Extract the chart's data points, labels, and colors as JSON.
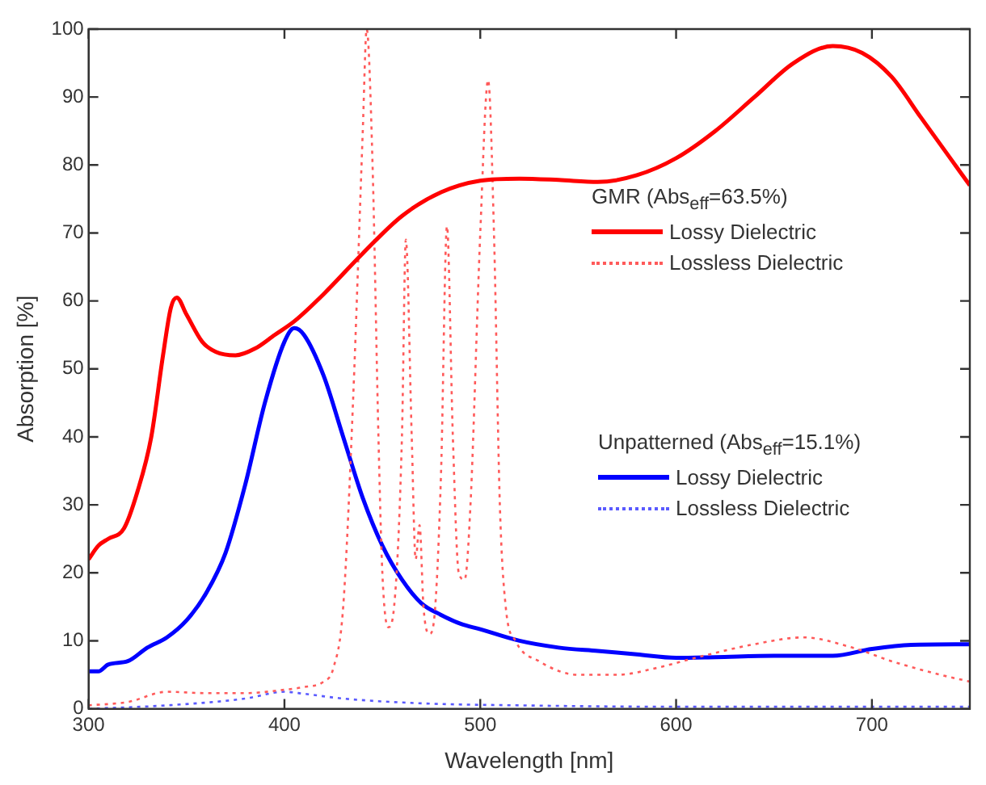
{
  "chart_data": {
    "type": "line",
    "xlabel": "Wavelength [nm]",
    "ylabel": "Absorption [%]",
    "xlim": [
      300,
      750
    ],
    "xticks": [
      300,
      400,
      500,
      600,
      700
    ],
    "ylim": [
      0,
      100
    ],
    "yticks": [
      0,
      10,
      20,
      30,
      40,
      50,
      60,
      70,
      80,
      90,
      100
    ],
    "grid": false,
    "legend": "right",
    "marker": "none",
    "annotations": [
      "GMR (Abs$_{eff}$=63.5%)",
      "Unpatterned (Abs$_{eff}$=15.1%)"
    ],
    "series": [
      {
        "name": "Lossy Dielectric",
        "color": "#ff0000",
        "line_style": "solid",
        "x": [
          300,
          305,
          310,
          318,
          325,
          332,
          338,
          342,
          345,
          350,
          358,
          365,
          375,
          385,
          395,
          405,
          420,
          440,
          460,
          480,
          500,
          520,
          540,
          560,
          580,
          600,
          620,
          640,
          660,
          680,
          695,
          710,
          725,
          740,
          750
        ],
        "values": [
          22,
          24,
          25,
          26.5,
          32,
          40,
          52,
          59,
          60.5,
          58,
          54,
          52.5,
          52,
          53,
          55,
          57,
          61,
          67,
          72.5,
          76,
          77.7,
          78,
          77.8,
          77.5,
          78.5,
          81,
          85,
          90,
          95,
          97.5,
          96.5,
          93,
          87,
          81,
          77
        ]
      },
      {
        "name": "Lossless Dielectric",
        "color": "#ff5a5a",
        "line_style": "dotted",
        "x": [
          300,
          320,
          340,
          360,
          380,
          400,
          410,
          420,
          425,
          430,
          435,
          440,
          442,
          445,
          448,
          450,
          453,
          456,
          460,
          462,
          465,
          467,
          469,
          471,
          474,
          477,
          480,
          483,
          486,
          489,
          492,
          495,
          500,
          504,
          507,
          510,
          513,
          518,
          530,
          550,
          570,
          590,
          610,
          640,
          665,
          690,
          710,
          735,
          750
        ],
        "values": [
          0.5,
          1,
          2.5,
          2.3,
          2.3,
          2.8,
          3.2,
          4,
          6,
          15,
          45,
          85,
          100,
          80,
          40,
          20,
          12,
          15,
          40,
          69,
          40,
          22,
          27,
          15,
          11,
          15,
          35,
          71,
          40,
          20,
          19,
          30,
          70,
          92.5,
          70,
          30,
          15,
          10,
          7,
          5,
          5,
          6,
          7.5,
          9.5,
          10.5,
          9,
          7,
          5,
          4
        ]
      },
      {
        "name": "Lossy Dielectric",
        "color": "#0000ff",
        "line_style": "solid",
        "x": [
          300,
          305,
          310,
          320,
          330,
          340,
          350,
          360,
          370,
          380,
          390,
          400,
          405,
          410,
          420,
          430,
          440,
          450,
          460,
          470,
          480,
          490,
          500,
          520,
          540,
          560,
          580,
          600,
          620,
          650,
          680,
          700,
          720,
          750
        ],
        "values": [
          5.5,
          5.5,
          6.5,
          7,
          9,
          10.5,
          13,
          17,
          23,
          33,
          45,
          54,
          56,
          55,
          49,
          40,
          31,
          24,
          19,
          15.5,
          13.8,
          12.5,
          11.7,
          10,
          9,
          8.5,
          8,
          7.5,
          7.6,
          7.8,
          7.8,
          8.8,
          9.4,
          9.5
        ]
      },
      {
        "name": "Lossless Dielectric",
        "color": "#5a5aff",
        "line_style": "dotted",
        "x": [
          300,
          340,
          380,
          400,
          410,
          430,
          470,
          520,
          600,
          750
        ],
        "values": [
          0,
          0.5,
          1.5,
          2.5,
          2.2,
          1.5,
          0.8,
          0.5,
          0.3,
          0.3
        ]
      }
    ]
  }
}
